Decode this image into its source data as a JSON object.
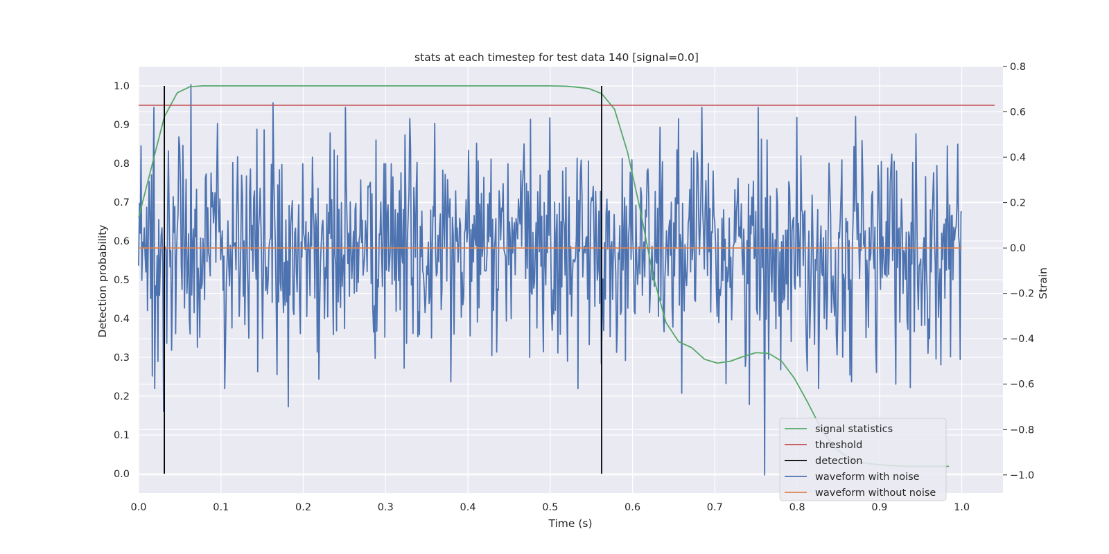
{
  "chart_data": {
    "type": "line",
    "title": "stats at each timestep for test data 140 [signal=0.0]",
    "xlabel": "Time (s)",
    "ylabel": "Detection probability",
    "y2label": "Strain",
    "xlim": [
      0.0,
      1.05
    ],
    "ylim": [
      -0.05,
      1.05
    ],
    "y2lim": [
      -1.08,
      0.8
    ],
    "x_ticks": [
      "0.0",
      "0.1",
      "0.2",
      "0.3",
      "0.4",
      "0.5",
      "0.6",
      "0.7",
      "0.8",
      "0.9",
      "1.0"
    ],
    "y_ticks": [
      "0.0",
      "0.1",
      "0.2",
      "0.3",
      "0.4",
      "0.5",
      "0.6",
      "0.7",
      "0.8",
      "0.9",
      "1.0"
    ],
    "y2_ticks": [
      "−1.0",
      "−0.8",
      "−0.6",
      "−0.4",
      "−0.2",
      "0.0",
      "0.2",
      "0.4",
      "0.6",
      "0.8"
    ],
    "grid": true,
    "legend_position": "lower-right",
    "colors": {
      "background": "#eaeaf2",
      "grid": "#ffffff",
      "signal_statistics": "#55a868",
      "threshold": "#c44e52",
      "detection": "#000000",
      "waveform_with_noise": "#4c72b0",
      "waveform_without_noise": "#dd8452"
    },
    "series": [
      {
        "name": "signal statistics",
        "axis": "left",
        "x": [
          0.0,
          0.0156,
          0.0312,
          0.0469,
          0.0625,
          0.0781,
          0.0938,
          0.1094,
          0.125,
          0.15,
          0.2,
          0.25,
          0.3,
          0.35,
          0.4,
          0.45,
          0.5,
          0.52,
          0.5312,
          0.5469,
          0.5625,
          0.5781,
          0.5938,
          0.6094,
          0.625,
          0.6406,
          0.6562,
          0.6719,
          0.6875,
          0.7031,
          0.7188,
          0.7344,
          0.75,
          0.7656,
          0.7812,
          0.7969,
          0.8125,
          0.8281,
          0.8438,
          0.8594,
          0.875,
          0.8906,
          0.9062,
          0.9219,
          0.9375,
          0.9531,
          0.9688,
          0.9844
        ],
        "values": [
          0.66,
          0.79,
          0.92,
          0.982,
          0.998,
          1.0,
          1.0,
          1.0,
          1.0,
          1.0,
          1.0,
          1.0,
          1.0,
          1.0,
          1.0,
          1.0,
          1.0,
          0.999,
          0.997,
          0.993,
          0.98,
          0.94,
          0.83,
          0.68,
          0.51,
          0.39,
          0.34,
          0.325,
          0.295,
          0.285,
          0.29,
          0.302,
          0.312,
          0.31,
          0.29,
          0.245,
          0.185,
          0.12,
          0.07,
          0.045,
          0.03,
          0.025,
          0.022,
          0.02,
          0.019,
          0.019,
          0.019,
          0.019
        ]
      },
      {
        "name": "threshold",
        "axis": "left",
        "x": [
          0.0,
          1.04
        ],
        "values": [
          0.95,
          0.95
        ]
      },
      {
        "name": "detection",
        "axis": "left",
        "x": [
          0.03125,
          0.5625
        ],
        "values": [
          1.0,
          1.0
        ]
      },
      {
        "name": "waveform with noise",
        "axis": "right",
        "sample_count": 1024,
        "x_range": [
          0.0,
          1.0
        ],
        "std": 0.23,
        "extrema": [
          {
            "x": 0.0029,
            "value": 0.45
          },
          {
            "x": 0.0234,
            "value": -0.5
          },
          {
            "x": 0.0303,
            "value": -0.72
          },
          {
            "x": 0.0635,
            "value": 0.72
          },
          {
            "x": 0.1631,
            "value": 0.64
          },
          {
            "x": 0.1816,
            "value": -0.7
          },
          {
            "x": 0.3789,
            "value": -0.59
          },
          {
            "x": 0.5625,
            "value": -0.51
          },
          {
            "x": 0.6562,
            "value": 0.57
          },
          {
            "x": 0.6602,
            "value": -0.64
          },
          {
            "x": 0.7422,
            "value": -0.69
          },
          {
            "x": 0.7568,
            "value": 0.48
          },
          {
            "x": 0.7607,
            "value": -1.0
          },
          {
            "x": 0.8262,
            "value": -0.62
          },
          {
            "x": 0.8711,
            "value": 0.58
          },
          {
            "x": 0.9199,
            "value": -0.6
          },
          {
            "x": 0.9824,
            "value": 0.45
          },
          {
            "x": 0.9863,
            "value": -0.48
          }
        ]
      },
      {
        "name": "waveform without noise",
        "axis": "right",
        "x": [
          0.0,
          1.0
        ],
        "values": [
          0.0,
          0.0
        ]
      }
    ]
  }
}
